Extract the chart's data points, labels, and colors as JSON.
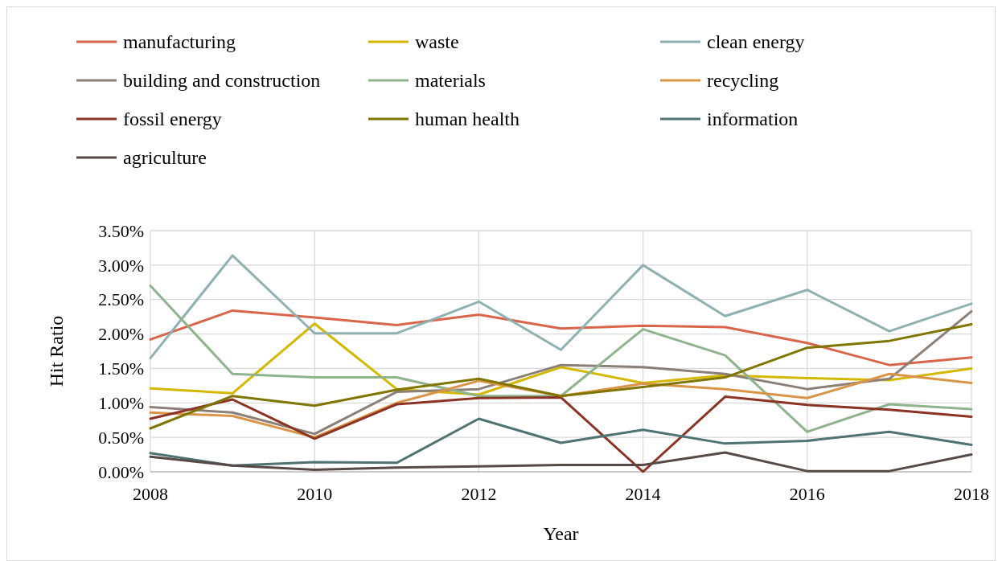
{
  "chart_data": {
    "type": "line",
    "xlabel": "Year",
    "ylabel": "Hit Ratio",
    "x": [
      2008,
      2009,
      2010,
      2011,
      2012,
      2013,
      2014,
      2015,
      2016,
      2017,
      2018
    ],
    "xlim": [
      2008,
      2018
    ],
    "xticks": [
      2008,
      2010,
      2012,
      2014,
      2016,
      2018
    ],
    "ylim": [
      0,
      3.5
    ],
    "yticks": [
      {
        "value": 0,
        "label": "0.00%"
      },
      {
        "value": 0.5,
        "label": "0.50%"
      },
      {
        "value": 1,
        "label": "1.00%"
      },
      {
        "value": 1.5,
        "label": "1.50%"
      },
      {
        "value": 2,
        "label": "2.00%"
      },
      {
        "value": 2.5,
        "label": "2.50%"
      },
      {
        "value": 3,
        "label": "3.00%"
      },
      {
        "value": 3.5,
        "label": "3.50%"
      }
    ],
    "grid": true,
    "legend": "top",
    "marker": "none",
    "line_style": "solid",
    "series": [
      {
        "name": "manufacturing",
        "color": "#d9654a",
        "values": [
          1.92,
          2.34,
          2.24,
          2.13,
          2.28,
          2.08,
          2.12,
          2.1,
          1.87,
          1.55,
          1.66
        ]
      },
      {
        "name": "waste",
        "color": "#d4b800",
        "values": [
          1.21,
          1.14,
          2.15,
          1.2,
          1.12,
          1.52,
          1.29,
          1.4,
          1.36,
          1.33,
          1.5
        ]
      },
      {
        "name": "clean energy",
        "color": "#8fb1b1",
        "values": [
          1.65,
          3.14,
          2.01,
          2.01,
          2.47,
          1.77,
          3.0,
          2.26,
          2.64,
          2.04,
          2.44
        ]
      },
      {
        "name": "building and construction",
        "color": "#8c7f78",
        "values": [
          0.94,
          0.86,
          0.55,
          1.16,
          1.2,
          1.55,
          1.52,
          1.42,
          1.2,
          1.35,
          2.33
        ]
      },
      {
        "name": "materials",
        "color": "#8fb38c",
        "values": [
          2.7,
          1.42,
          1.37,
          1.37,
          1.1,
          1.1,
          2.07,
          1.69,
          0.58,
          0.98,
          0.91
        ]
      },
      {
        "name": "recycling",
        "color": "#d99448",
        "values": [
          0.86,
          0.81,
          0.5,
          1.0,
          1.32,
          1.1,
          1.28,
          1.2,
          1.07,
          1.42,
          1.29
        ]
      },
      {
        "name": "fossil energy",
        "color": "#8b3324",
        "values": [
          0.77,
          1.05,
          0.48,
          0.98,
          1.07,
          1.08,
          0.0,
          1.09,
          0.97,
          0.9,
          0.8
        ]
      },
      {
        "name": "human health",
        "color": "#7f7500",
        "values": [
          0.63,
          1.1,
          0.96,
          1.19,
          1.35,
          1.1,
          1.23,
          1.37,
          1.8,
          1.9,
          2.14
        ]
      },
      {
        "name": "information",
        "color": "#4f7272",
        "values": [
          0.27,
          0.09,
          0.14,
          0.13,
          0.77,
          0.42,
          0.61,
          0.41,
          0.45,
          0.58,
          0.39
        ]
      },
      {
        "name": "agriculture",
        "color": "#574a46",
        "values": [
          0.22,
          0.09,
          0.03,
          0.06,
          0.08,
          0.1,
          0.1,
          0.28,
          0.01,
          0.01,
          0.25
        ]
      }
    ]
  }
}
